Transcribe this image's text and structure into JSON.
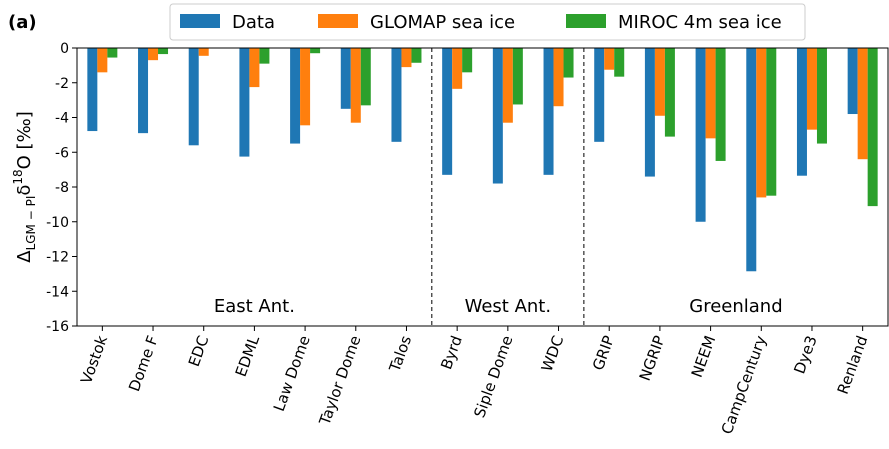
{
  "chart_data": {
    "type": "bar",
    "panel_label": "(a)",
    "y_label": [
      "Δ",
      "LGM − PI",
      "δ",
      "18",
      "O [‰]"
    ],
    "categories": [
      "Vostok",
      "Dome F",
      "EDC",
      "EDML",
      "Law Dome",
      "Taylor Dome",
      "Talos",
      "Byrd",
      "Siple Dome",
      "WDC",
      "GRIP",
      "NGRIP",
      "NEEM",
      "CampCentury",
      "Dye3",
      "Renland"
    ],
    "series": [
      {
        "name": "Data",
        "color": "#1f77b4",
        "values": [
          -4.78,
          -4.9,
          -5.6,
          -6.25,
          -5.5,
          -3.5,
          -5.4,
          -7.3,
          -7.8,
          -7.3,
          -5.4,
          -7.4,
          -10.0,
          -12.85,
          -7.35,
          -3.8
        ]
      },
      {
        "name": "GLOMAP sea ice",
        "color": "#ff7f0e",
        "values": [
          -1.4,
          -0.7,
          -0.45,
          -2.25,
          -4.45,
          -4.3,
          -1.1,
          -2.35,
          -4.3,
          -3.35,
          -1.25,
          -3.9,
          -5.2,
          -8.6,
          -4.7,
          -6.4
        ]
      },
      {
        "name": "MIROC 4m sea ice",
        "color": "#2ca02c",
        "values": [
          -0.55,
          -0.35,
          0,
          -0.9,
          -0.3,
          -3.3,
          -0.85,
          -1.4,
          -3.25,
          -1.7,
          -1.65,
          -5.1,
          -6.5,
          -8.5,
          -5.5,
          -9.1
        ]
      }
    ],
    "annotations": [
      "East Ant.",
      "West Ant.",
      "Greenland"
    ],
    "ylim": [
      -16,
      0
    ],
    "yticks": [
      0,
      -2,
      -4,
      -6,
      -8,
      -10,
      -12,
      -14,
      -16
    ],
    "legend": "top"
  }
}
